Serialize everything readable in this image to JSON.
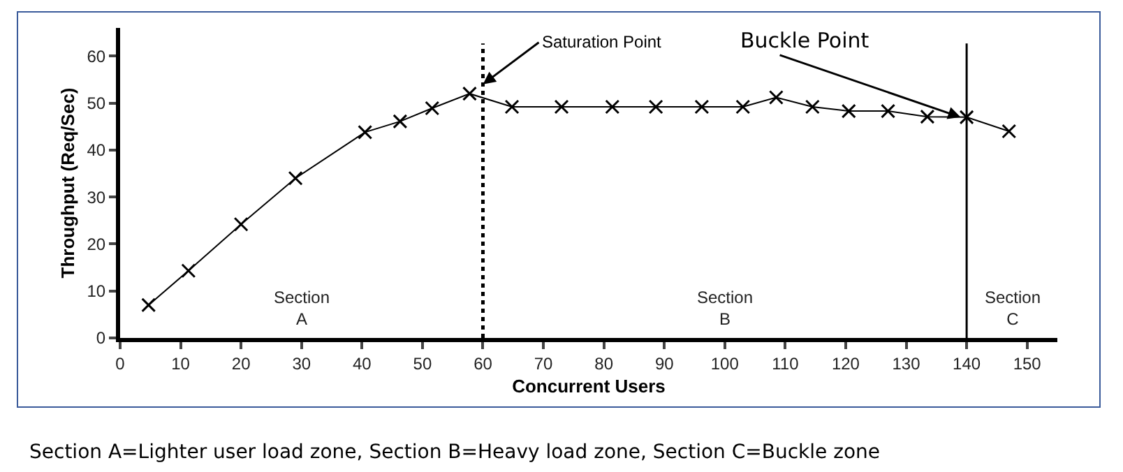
{
  "chart_data": {
    "type": "line",
    "xlabel": "Concurrent Users",
    "ylabel": "Throughput (Req/Sec)",
    "x": [
      4.7,
      11.3,
      20,
      29,
      40.5,
      46.3,
      51.6,
      57.8,
      64.8,
      73,
      81.4,
      88.6,
      96.2,
      103,
      108.5,
      114.5,
      120.5,
      127,
      133.5,
      140,
      147
    ],
    "series": [
      {
        "color": "#000000",
        "values": [
          7,
          14.3,
          24.2,
          34,
          43.8,
          46.1,
          48.9,
          52,
          49.2,
          49.2,
          49.2,
          49.2,
          49.2,
          49.2,
          51.2,
          49.2,
          48.3,
          48.3,
          47.1,
          47,
          44
        ]
      }
    ],
    "xlim": [
      0,
      155
    ],
    "xticks": [
      0,
      10,
      20,
      30,
      40,
      50,
      60,
      70,
      80,
      90,
      100,
      110,
      120,
      130,
      140,
      150
    ],
    "ylim": [
      0,
      66
    ],
    "yticks": [
      0,
      10,
      20,
      30,
      40,
      50,
      60
    ],
    "marker": "cross",
    "grid": false,
    "ref_lines": [
      {
        "axis": "x",
        "value": 60,
        "line_style": "dotted",
        "color": "#000000"
      },
      {
        "axis": "x",
        "value": 140,
        "line_style": "solid",
        "color": "#000000"
      }
    ],
    "annotations": [
      {
        "text": "Saturation Point",
        "x": 60,
        "y": 54
      },
      {
        "text": "Buckle Point",
        "x": 139,
        "y": 47
      },
      "Section\nA",
      "Section\nB",
      "Section\nC",
      "Section A=Lighter user load zone, Section B=Heavy load zone, Section C=Buckle zone"
    ]
  }
}
